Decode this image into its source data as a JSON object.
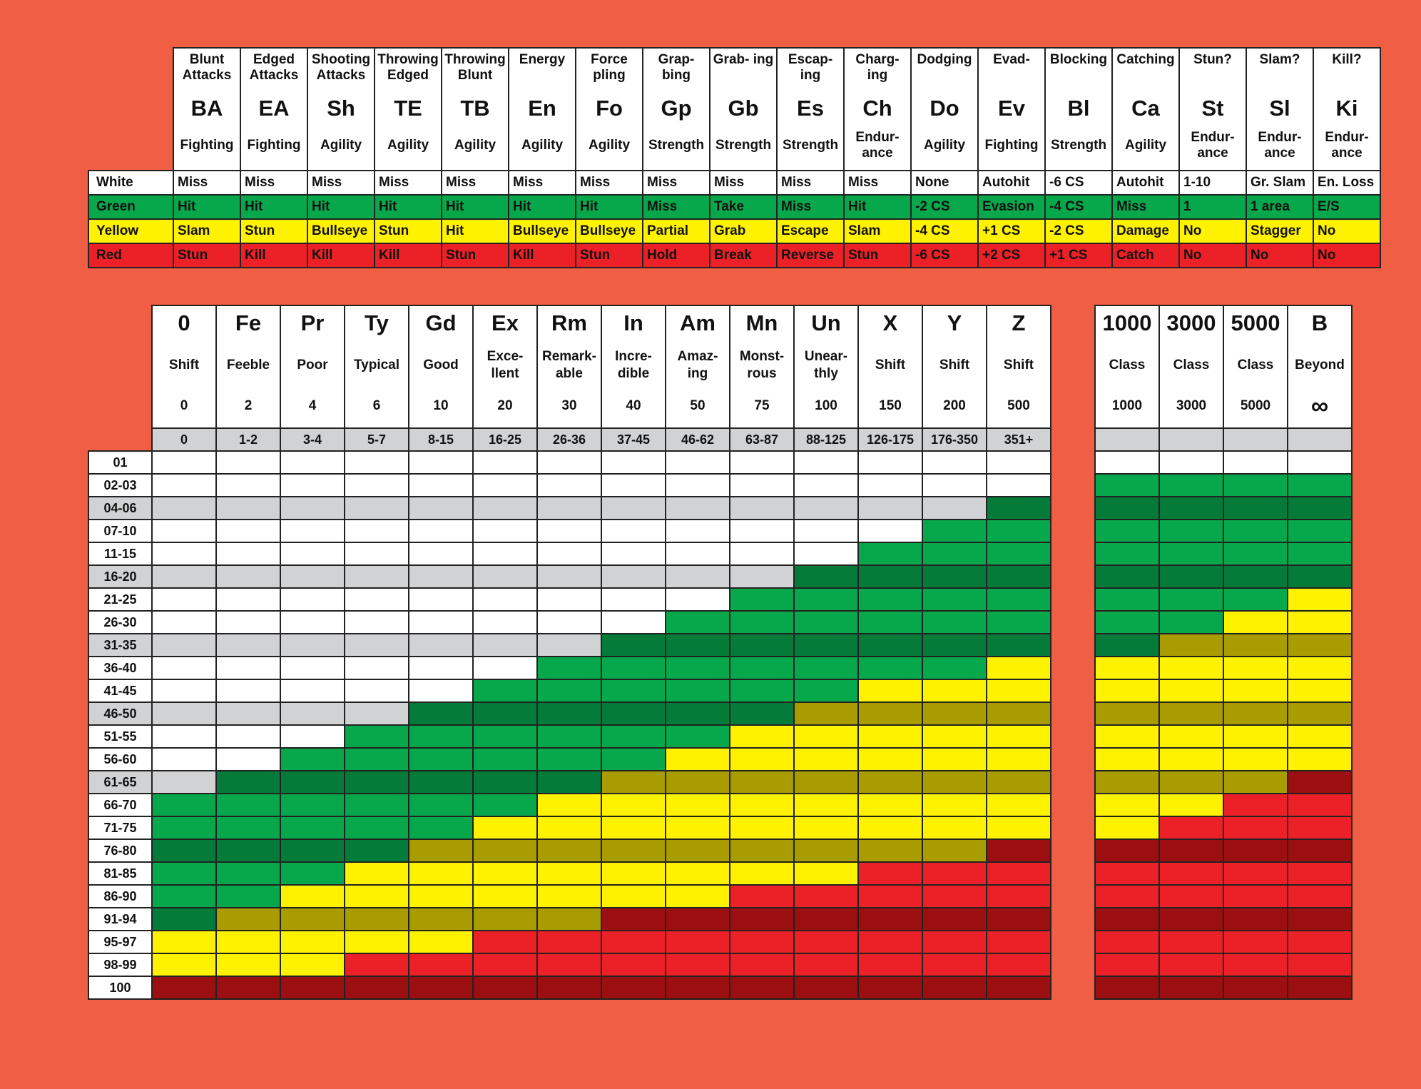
{
  "colors": {
    "white": "#ffffff",
    "green": "#07a84b",
    "yellow": "#fff200",
    "red": "#ec2127",
    "grey": "#d1d2d4",
    "dark_green": "#047b39",
    "olive": "#a89c00",
    "dark_red": "#9b0f10",
    "background": "#f05e44"
  },
  "action_table": {
    "columns": [
      {
        "title": "Blunt Attacks",
        "abbr": "BA",
        "stat": "Fighting"
      },
      {
        "title": "Edged Attacks",
        "abbr": "EA",
        "stat": "Fighting"
      },
      {
        "title": "Shooting Attacks",
        "abbr": "Sh",
        "stat": "Agility"
      },
      {
        "title": "Throwing Edged",
        "abbr": "TE",
        "stat": "Agility"
      },
      {
        "title": "Throwing Blunt",
        "abbr": "TB",
        "stat": "Agility"
      },
      {
        "title": "Energy",
        "abbr": "En",
        "stat": "Agility"
      },
      {
        "title": "Force pling",
        "abbr": "Fo",
        "stat": "Agility"
      },
      {
        "title": "Grap- bing",
        "abbr": "Gp",
        "stat": "Strength"
      },
      {
        "title": "Grab- ing",
        "abbr": "Gb",
        "stat": "Strength"
      },
      {
        "title": "Escap- ing",
        "abbr": "Es",
        "stat": "Strength"
      },
      {
        "title": "Charg- ing",
        "abbr": "Ch",
        "stat": "Endur- ance"
      },
      {
        "title": "Dodging",
        "abbr": "Do",
        "stat": "Agility"
      },
      {
        "title": "Evad-",
        "abbr": "Ev",
        "stat": "Fighting"
      },
      {
        "title": "Blocking",
        "abbr": "Bl",
        "stat": "Strength"
      },
      {
        "title": "Catching",
        "abbr": "Ca",
        "stat": "Agility"
      },
      {
        "title": "Stun?",
        "abbr": "St",
        "stat": "Endur- ance"
      },
      {
        "title": "Slam?",
        "abbr": "Sl",
        "stat": "Endur- ance"
      },
      {
        "title": "Kill?",
        "abbr": "Ki",
        "stat": "Endur- ance"
      }
    ],
    "rows": [
      {
        "label": "White",
        "color": "white",
        "cells": [
          "Miss",
          "Miss",
          "Miss",
          "Miss",
          "Miss",
          "Miss",
          "Miss",
          "Miss",
          "Miss",
          "Miss",
          "Miss",
          "None",
          "Autohit",
          "-6 CS",
          "Autohit",
          "1-10",
          "Gr. Slam",
          "En. Loss"
        ]
      },
      {
        "label": "Green",
        "color": "green",
        "cells": [
          "Hit",
          "Hit",
          "Hit",
          "Hit",
          "Hit",
          "Hit",
          "Hit",
          "Miss",
          "Take",
          "Miss",
          "Hit",
          "-2 CS",
          "Evasion",
          "-4 CS",
          "Miss",
          "1",
          "1 area",
          "E/S"
        ]
      },
      {
        "label": "Yellow",
        "color": "yellow",
        "cells": [
          "Slam",
          "Stun",
          "Bullseye",
          "Stun",
          "Hit",
          "Bullseye",
          "Bullseye",
          "Partial",
          "Grab",
          "Escape",
          "Slam",
          "-4 CS",
          "+1 CS",
          "-2 CS",
          "Damage",
          "No",
          "Stagger",
          "No"
        ]
      },
      {
        "label": "Red",
        "color": "red",
        "cells": [
          "Stun",
          "Kill",
          "Kill",
          "Kill",
          "Stun",
          "Kill",
          "Stun",
          "Hold",
          "Break",
          "Reverse",
          "Stun",
          "-6 CS",
          "+2 CS",
          "+1 CS",
          "Catch",
          "No",
          "No",
          "No"
        ]
      }
    ]
  },
  "rank_table": {
    "columns": [
      {
        "abbr": "0",
        "name": "Shift",
        "value": "0",
        "range": "0"
      },
      {
        "abbr": "Fe",
        "name": "Feeble",
        "value": "2",
        "range": "1-2"
      },
      {
        "abbr": "Pr",
        "name": "Poor",
        "value": "4",
        "range": "3-4"
      },
      {
        "abbr": "Ty",
        "name": "Typical",
        "value": "6",
        "range": "5-7"
      },
      {
        "abbr": "Gd",
        "name": "Good",
        "value": "10",
        "range": "8-15"
      },
      {
        "abbr": "Ex",
        "name": "Exce- llent",
        "value": "20",
        "range": "16-25"
      },
      {
        "abbr": "Rm",
        "name": "Remark- able",
        "value": "30",
        "range": "26-36"
      },
      {
        "abbr": "In",
        "name": "Incre- dible",
        "value": "40",
        "range": "37-45"
      },
      {
        "abbr": "Am",
        "name": "Amaz- ing",
        "value": "50",
        "range": "46-62"
      },
      {
        "abbr": "Mn",
        "name": "Monst- rous",
        "value": "75",
        "range": "63-87"
      },
      {
        "abbr": "Un",
        "name": "Unear- thly",
        "value": "100",
        "range": "88-125"
      },
      {
        "abbr": "X",
        "name": "Shift",
        "value": "150",
        "range": "126-175"
      },
      {
        "abbr": "Y",
        "name": "Shift",
        "value": "200",
        "range": "176-350"
      },
      {
        "abbr": "Z",
        "name": "Shift",
        "value": "500",
        "range": "351+"
      }
    ],
    "class_columns": [
      {
        "abbr": "1000",
        "name": "Class",
        "value": "1000",
        "range": ""
      },
      {
        "abbr": "3000",
        "name": "Class",
        "value": "3000",
        "range": ""
      },
      {
        "abbr": "5000",
        "name": "Class",
        "value": "5000",
        "range": ""
      },
      {
        "abbr": "B",
        "name": "Beyond",
        "value": "∞",
        "range": ""
      }
    ],
    "rows": [
      {
        "label": "01",
        "greyed": false,
        "main": "wwwwwwwwwwwwww",
        "cls": "wwww"
      },
      {
        "label": "02-03",
        "greyed": false,
        "main": "wwwwwwwwwwwwww",
        "cls": "gggg"
      },
      {
        "label": "04-06",
        "greyed": true,
        "main": "sssssssssssssD",
        "cls": "DDDD"
      },
      {
        "label": "07-10",
        "greyed": false,
        "main": "wwwwwwwwwwwwgg",
        "cls": "gggg"
      },
      {
        "label": "11-15",
        "greyed": false,
        "main": "wwwwwwwwwwwggg",
        "cls": "gggg"
      },
      {
        "label": "16-20",
        "greyed": true,
        "main": "ssssssssssDDDD",
        "cls": "DDDD"
      },
      {
        "label": "21-25",
        "greyed": false,
        "main": "wwwwwwwwwggggg",
        "cls": "gggy"
      },
      {
        "label": "26-30",
        "greyed": false,
        "main": "wwwwwwwwgggggg",
        "cls": "ggyy"
      },
      {
        "label": "31-35",
        "greyed": true,
        "main": "sssssssDDDDDDD",
        "cls": "Dooo"
      },
      {
        "label": "36-40",
        "greyed": false,
        "main": "wwwwwwgggggggy",
        "cls": "yyyy"
      },
      {
        "label": "41-45",
        "greyed": false,
        "main": "wwwwwggggggyyy",
        "cls": "yyyy"
      },
      {
        "label": "46-50",
        "greyed": true,
        "main": "ssssDDDDDDoooo",
        "cls": "oooo"
      },
      {
        "label": "51-55",
        "greyed": false,
        "main": "wwwggggggyyyyy",
        "cls": "yyyy"
      },
      {
        "label": "56-60",
        "greyed": false,
        "main": "wwggggggyyyyyy",
        "cls": "yyyy"
      },
      {
        "label": "61-65",
        "greyed": true,
        "main": "sDDDDDDooooooo",
        "cls": "oooR"
      },
      {
        "label": "66-70",
        "greyed": false,
        "main": "ggggggyyyyyyyy",
        "cls": "yyrr"
      },
      {
        "label": "71-75",
        "greyed": false,
        "main": "gggggyyyyyyyyy",
        "cls": "yrrr"
      },
      {
        "label": "76-80",
        "greyed": false,
        "main": "DDDDoooooooooR",
        "cls": "RRRR"
      },
      {
        "label": "81-85",
        "greyed": false,
        "main": "gggyyyyyyyyrrr",
        "cls": "rrrr"
      },
      {
        "label": "86-90",
        "greyed": false,
        "main": "ggyyyyyyyrrrrr",
        "cls": "rrrr"
      },
      {
        "label": "91-94",
        "greyed": false,
        "main": "DooooooRRRRRRR",
        "cls": "RRRR"
      },
      {
        "label": "95-97",
        "greyed": false,
        "main": "yyyyyrrrrrrrrr",
        "cls": "rrrr"
      },
      {
        "label": "98-99",
        "greyed": false,
        "main": "yyyrrrrrrrrrrr",
        "cls": "rrrr"
      },
      {
        "label": "100",
        "greyed": false,
        "main": "RRRRRRRRRRRRRR",
        "cls": "RRRR"
      }
    ]
  }
}
